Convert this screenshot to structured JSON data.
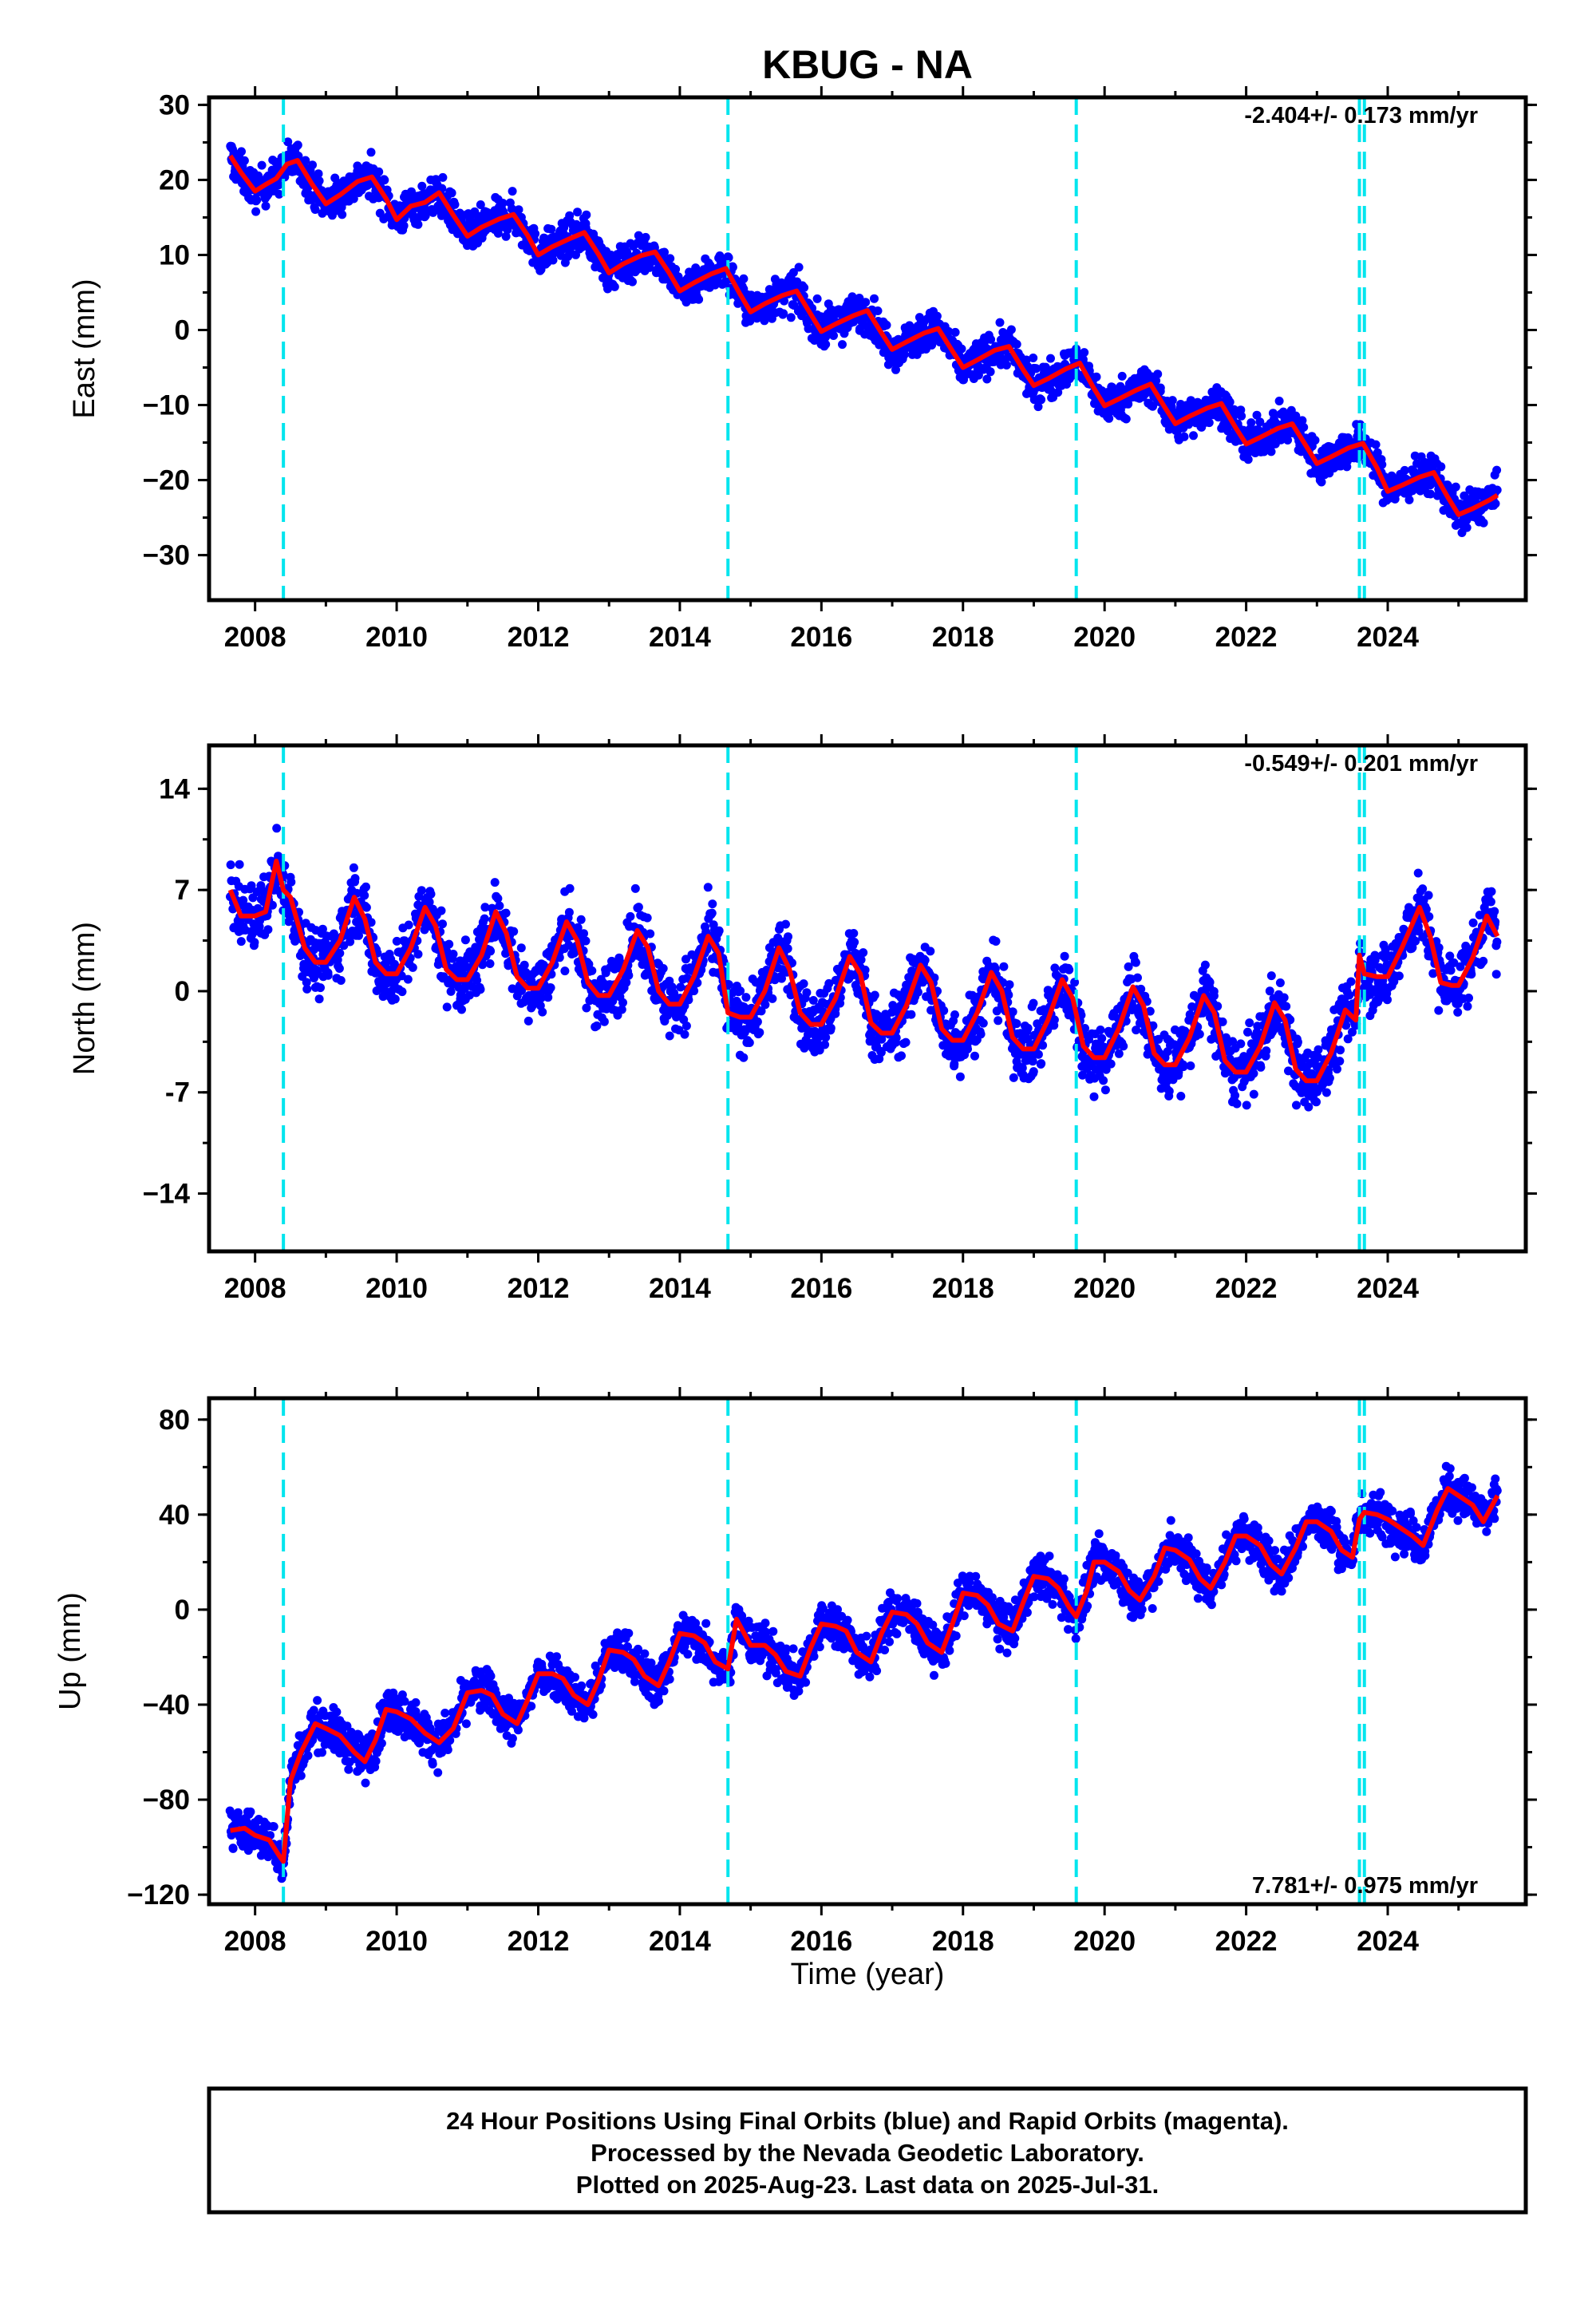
{
  "title": "KBUG - NA",
  "xlabel": "Time (year)",
  "footer": [
    "24 Hour Positions Using Final Orbits (blue) and Rapid Orbits (magenta).",
    "Processed by the Nevada Geodetic Laboratory.",
    "Plotted on 2025-Aug-23. Last data on 2025-Jul-31."
  ],
  "colors": {
    "points": "#0000ff",
    "model": "#ff0000",
    "offsets": "#00e5ee",
    "frame": "#000000"
  },
  "chart_data": [
    {
      "type": "scatter",
      "ylabel": "East (mm)",
      "rate_text": "-2.404+/- 0.173 mm/yr",
      "rate_position": "top-right",
      "xlim": [
        2007.35,
        2025.95
      ],
      "ylim": [
        -36,
        31
      ],
      "xticks": [
        2008,
        2010,
        2012,
        2014,
        2016,
        2018,
        2020,
        2022,
        2024
      ],
      "yticks": [
        30,
        20,
        10,
        0,
        -10,
        -20,
        -30
      ],
      "ytick_labels": [
        "30",
        "20",
        "10",
        "0",
        "−10",
        "−20",
        "−30"
      ],
      "offsets": [
        2008.4,
        2014.68,
        2019.6,
        2023.6,
        2023.67
      ],
      "series": [
        {
          "type": "line",
          "role": "model",
          "x": [
            2007.65,
            2007.8,
            2008.0,
            2008.15,
            2008.3,
            2008.45,
            2008.6,
            2008.8,
            2009.0,
            2009.2,
            2009.45,
            2009.65,
            2009.85,
            2010.0,
            2010.2,
            2010.4,
            2010.6,
            2010.8,
            2011.0,
            2011.2,
            2011.45,
            2011.65,
            2011.85,
            2012.0,
            2012.2,
            2012.45,
            2012.65,
            2012.85,
            2013.0,
            2013.2,
            2013.45,
            2013.65,
            2013.85,
            2014.0,
            2014.2,
            2014.45,
            2014.65,
            2014.85,
            2015.0,
            2015.2,
            2015.45,
            2015.65,
            2015.85,
            2016.0,
            2016.2,
            2016.45,
            2016.65,
            2016.85,
            2017.0,
            2017.2,
            2017.45,
            2017.65,
            2017.85,
            2018.0,
            2018.2,
            2018.45,
            2018.65,
            2018.85,
            2019.0,
            2019.2,
            2019.45,
            2019.65,
            2019.85,
            2020.0,
            2020.2,
            2020.45,
            2020.65,
            2020.85,
            2021.0,
            2021.2,
            2021.45,
            2021.65,
            2021.85,
            2022.0,
            2022.2,
            2022.45,
            2022.65,
            2022.85,
            2023.0,
            2023.2,
            2023.45,
            2023.65,
            2023.85,
            2024.0,
            2024.2,
            2024.45,
            2024.65,
            2024.85,
            2025.0,
            2025.2,
            2025.45,
            2025.55
          ],
          "y": [
            23.2,
            21.0,
            18.5,
            19.4,
            20.2,
            22.1,
            22.6,
            19.5,
            16.8,
            18.0,
            19.8,
            20.4,
            17.5,
            14.7,
            16.5,
            17.0,
            18.3,
            15.3,
            12.5,
            13.7,
            14.8,
            15.4,
            12.6,
            10.0,
            11.1,
            12.2,
            13.0,
            10.1,
            7.6,
            8.8,
            9.9,
            10.4,
            7.6,
            5.2,
            6.3,
            7.5,
            8.2,
            4.8,
            2.4,
            3.5,
            4.6,
            5.2,
            2.1,
            -0.2,
            0.8,
            1.9,
            2.6,
            -0.4,
            -2.6,
            -1.6,
            -0.4,
            0.2,
            -2.8,
            -5.0,
            -4.0,
            -2.7,
            -2.2,
            -5.3,
            -7.4,
            -6.5,
            -5.2,
            -4.4,
            -7.8,
            -10.1,
            -9.2,
            -8.0,
            -7.2,
            -10.3,
            -12.5,
            -11.5,
            -10.4,
            -9.8,
            -13.0,
            -15.2,
            -14.3,
            -13.1,
            -12.5,
            -15.5,
            -17.8,
            -16.9,
            -15.7,
            -15.1,
            -18.4,
            -21.5,
            -20.7,
            -19.6,
            -19.0,
            -22.3,
            -24.6,
            -23.8,
            -22.6,
            -22.0
          ]
        }
      ]
    },
    {
      "type": "scatter",
      "ylabel": "North (mm)",
      "rate_text": "-0.549+/- 0.201 mm/yr",
      "rate_position": "top-right",
      "xlim": [
        2007.35,
        2025.95
      ],
      "ylim": [
        -18,
        17
      ],
      "xticks": [
        2008,
        2010,
        2012,
        2014,
        2016,
        2018,
        2020,
        2022,
        2024
      ],
      "yticks": [
        14,
        7,
        0,
        -7,
        -14
      ],
      "ytick_labels": [
        "14",
        "7",
        "0",
        "-7",
        "−14"
      ],
      "offsets": [
        2008.4,
        2014.68,
        2019.6,
        2023.6,
        2023.67
      ],
      "series": [
        {
          "type": "line",
          "role": "model",
          "x": [
            2007.65,
            2007.8,
            2008.0,
            2008.15,
            2008.3,
            2008.4,
            2008.5,
            2008.7,
            2008.85,
            2009.0,
            2009.2,
            2009.4,
            2009.55,
            2009.7,
            2009.85,
            2010.0,
            2010.2,
            2010.4,
            2010.55,
            2010.7,
            2010.85,
            2011.0,
            2011.2,
            2011.4,
            2011.55,
            2011.7,
            2011.85,
            2012.0,
            2012.2,
            2012.4,
            2012.55,
            2012.7,
            2012.85,
            2013.0,
            2013.2,
            2013.4,
            2013.55,
            2013.7,
            2013.85,
            2014.0,
            2014.2,
            2014.4,
            2014.55,
            2014.68,
            2014.85,
            2015.0,
            2015.2,
            2015.4,
            2015.55,
            2015.7,
            2015.85,
            2016.0,
            2016.2,
            2016.4,
            2016.55,
            2016.7,
            2016.85,
            2017.0,
            2017.2,
            2017.4,
            2017.55,
            2017.7,
            2017.85,
            2018.0,
            2018.2,
            2018.4,
            2018.55,
            2018.7,
            2018.85,
            2019.0,
            2019.2,
            2019.4,
            2019.55,
            2019.7,
            2019.85,
            2020.0,
            2020.2,
            2020.4,
            2020.55,
            2020.7,
            2020.85,
            2021.0,
            2021.2,
            2021.4,
            2021.55,
            2021.7,
            2021.85,
            2022.0,
            2022.2,
            2022.4,
            2022.55,
            2022.7,
            2022.85,
            2023.0,
            2023.2,
            2023.4,
            2023.55,
            2023.6,
            2023.67,
            2023.85,
            2024.0,
            2024.2,
            2024.45,
            2024.6,
            2024.75,
            2024.9,
            2025.0,
            2025.2,
            2025.4,
            2025.55
          ],
          "y": [
            7.0,
            5.2,
            5.2,
            5.5,
            9.0,
            7.0,
            6.5,
            3.0,
            2.0,
            2.0,
            3.5,
            6.5,
            5.0,
            2.0,
            1.2,
            1.2,
            3.0,
            5.8,
            4.5,
            1.5,
            0.8,
            0.8,
            2.5,
            5.5,
            4.0,
            1.0,
            0.2,
            0.2,
            2.0,
            4.8,
            3.5,
            0.6,
            -0.3,
            -0.3,
            1.5,
            4.2,
            3.0,
            0.0,
            -0.9,
            -0.9,
            1.0,
            3.8,
            2.6,
            -1.5,
            -1.8,
            -1.8,
            0.0,
            3.0,
            1.5,
            -1.5,
            -2.3,
            -2.3,
            -0.5,
            2.4,
            1.2,
            -2.2,
            -2.9,
            -2.9,
            -1.0,
            1.8,
            0.6,
            -2.6,
            -3.4,
            -3.4,
            -1.5,
            1.3,
            0.0,
            -3.2,
            -4.0,
            -4.0,
            -2.0,
            0.8,
            -0.5,
            -3.8,
            -4.6,
            -4.6,
            -2.6,
            0.3,
            -1.0,
            -4.3,
            -5.1,
            -5.1,
            -3.2,
            -0.3,
            -1.5,
            -4.8,
            -5.6,
            -5.6,
            -3.8,
            -0.8,
            -2.0,
            -5.4,
            -6.2,
            -6.2,
            -4.3,
            -1.3,
            -2.0,
            2.5,
            1.2,
            1.0,
            1.0,
            3.0,
            5.8,
            3.8,
            0.6,
            0.4,
            0.4,
            2.3,
            5.2,
            3.8
          ]
        }
      ]
    },
    {
      "type": "scatter",
      "ylabel": "Up (mm)",
      "rate_text": "7.781+/- 0.975 mm/yr",
      "rate_position": "bottom-right",
      "xlim": [
        2007.35,
        2025.95
      ],
      "ylim": [
        -124,
        89
      ],
      "xticks": [
        2008,
        2010,
        2012,
        2014,
        2016,
        2018,
        2020,
        2022,
        2024
      ],
      "yticks": [
        80,
        40,
        0,
        -40,
        -80,
        -120
      ],
      "ytick_labels": [
        "80",
        "40",
        "0",
        "−40",
        "−80",
        "−120"
      ],
      "offsets": [
        2008.4,
        2014.68,
        2019.6,
        2023.6,
        2023.67
      ],
      "series": [
        {
          "type": "line",
          "role": "model",
          "x": [
            2007.65,
            2007.85,
            2008.0,
            2008.2,
            2008.35,
            2008.4,
            2008.5,
            2008.65,
            2008.85,
            2009.0,
            2009.2,
            2009.4,
            2009.55,
            2009.7,
            2009.85,
            2010.0,
            2010.2,
            2010.4,
            2010.6,
            2010.8,
            2011.0,
            2011.2,
            2011.35,
            2011.5,
            2011.7,
            2011.85,
            2012.0,
            2012.2,
            2012.35,
            2012.5,
            2012.7,
            2012.85,
            2013.0,
            2013.2,
            2013.35,
            2013.5,
            2013.7,
            2013.85,
            2014.0,
            2014.2,
            2014.35,
            2014.5,
            2014.68,
            2014.8,
            2015.0,
            2015.2,
            2015.35,
            2015.5,
            2015.7,
            2015.85,
            2016.0,
            2016.2,
            2016.35,
            2016.5,
            2016.7,
            2016.85,
            2017.0,
            2017.2,
            2017.35,
            2017.5,
            2017.7,
            2017.85,
            2018.0,
            2018.2,
            2018.35,
            2018.5,
            2018.7,
            2018.85,
            2019.0,
            2019.2,
            2019.35,
            2019.5,
            2019.6,
            2019.75,
            2019.85,
            2020.0,
            2020.2,
            2020.35,
            2020.5,
            2020.7,
            2020.85,
            2021.0,
            2021.2,
            2021.35,
            2021.5,
            2021.7,
            2021.85,
            2022.0,
            2022.2,
            2022.35,
            2022.5,
            2022.7,
            2022.85,
            2023.0,
            2023.2,
            2023.35,
            2023.5,
            2023.6,
            2023.67,
            2023.85,
            2024.0,
            2024.2,
            2024.35,
            2024.5,
            2024.7,
            2024.85,
            2025.0,
            2025.2,
            2025.35,
            2025.55
          ],
          "y": [
            -93,
            -92,
            -95,
            -97,
            -104,
            -106,
            -72,
            -60,
            -48,
            -50,
            -53,
            -60,
            -64,
            -55,
            -42,
            -43,
            -46,
            -52,
            -56,
            -50,
            -35,
            -34,
            -36,
            -44,
            -48,
            -38,
            -27,
            -27,
            -29,
            -36,
            -40,
            -30,
            -17,
            -18,
            -21,
            -28,
            -32,
            -22,
            -10,
            -11,
            -14,
            -22,
            -25,
            -4,
            -15,
            -15,
            -19,
            -26,
            -28,
            -16,
            -6,
            -7,
            -9,
            -18,
            -22,
            -10,
            -1,
            -2,
            -6,
            -14,
            -18,
            -6,
            7,
            6,
            2,
            -6,
            -9,
            3,
            14,
            13,
            9,
            1,
            -3,
            8,
            20,
            20,
            16,
            8,
            4,
            14,
            26,
            25,
            21,
            13,
            9,
            20,
            31,
            31,
            27,
            19,
            15,
            26,
            37,
            37,
            33,
            25,
            22,
            38,
            41,
            40,
            38,
            34,
            31,
            27,
            42,
            51,
            48,
            44,
            37,
            48
          ]
        }
      ]
    }
  ]
}
